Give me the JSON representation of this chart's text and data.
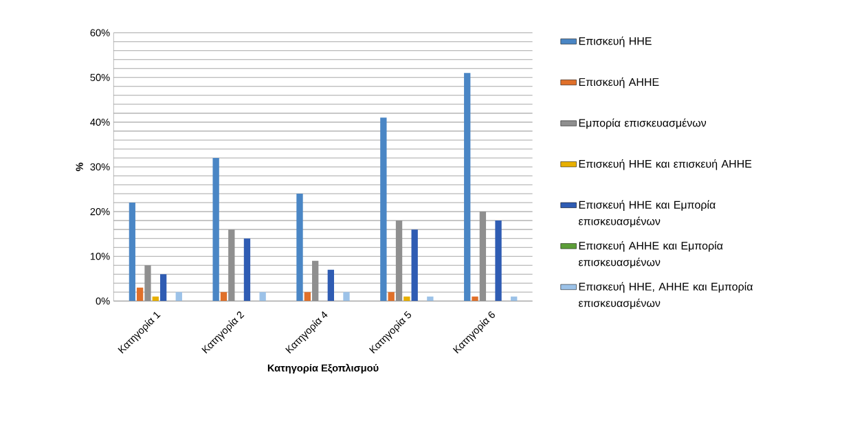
{
  "chart_data": {
    "type": "bar",
    "xlabel": "Κατηγορία Εξοπλισμού",
    "ylabel": "%",
    "categories": [
      "Κατηγορία 1",
      "Κατηγορία 2",
      "Κατηγορία 4",
      "Κατηγορία 5",
      "Κατηγορία 6"
    ],
    "series": [
      {
        "name": "Επισκευή ΗΗΕ",
        "color": "#4a86c5",
        "values": [
          22,
          32,
          24,
          41,
          51
        ]
      },
      {
        "name": "Επισκευή ΑΗΗΕ",
        "color": "#e0702a",
        "values": [
          3,
          2,
          2,
          2,
          1
        ]
      },
      {
        "name": "Εμπορία επισκευασμένων",
        "color": "#8f8f8f",
        "values": [
          8,
          16,
          9,
          18,
          20
        ]
      },
      {
        "name": "Επισκευή ΗΗΕ και επισκευή ΑΗΗΕ",
        "color": "#e8b000",
        "values": [
          1,
          0,
          0,
          1,
          0
        ]
      },
      {
        "name": "Επισκευή ΗΗΕ και Εμπορία επισκευασμένων",
        "color": "#2f5cb3",
        "values": [
          6,
          14,
          7,
          16,
          18
        ]
      },
      {
        "name": "Επισκευή ΑΗΗΕ  και Εμπορία επισκευασμένων",
        "color": "#5c9e38",
        "values": [
          0,
          0,
          0,
          0,
          0
        ]
      },
      {
        "name": "Επισκευή ΗΗΕ, ΑΗΗΕ και Εμπορία επισκευασμένων",
        "color": "#9cc2e8",
        "values": [
          2,
          2,
          2,
          1,
          1
        ]
      }
    ],
    "ylim": [
      0,
      60
    ],
    "yticks": [
      {
        "value": 0,
        "label": "0%"
      },
      {
        "value": 2,
        "label": null
      },
      {
        "value": 4,
        "label": null
      },
      {
        "value": 6,
        "label": null
      },
      {
        "value": 8,
        "label": null
      },
      {
        "value": 10,
        "label": "10%"
      },
      {
        "value": 12,
        "label": null
      },
      {
        "value": 14,
        "label": null
      },
      {
        "value": 16,
        "label": null
      },
      {
        "value": 18,
        "label": null
      },
      {
        "value": 20,
        "label": "20%"
      },
      {
        "value": 22,
        "label": null
      },
      {
        "value": 24,
        "label": null
      },
      {
        "value": 26,
        "label": null
      },
      {
        "value": 28,
        "label": null
      },
      {
        "value": 30,
        "label": "30%"
      },
      {
        "value": 32,
        "label": null
      },
      {
        "value": 34,
        "label": null
      },
      {
        "value": 36,
        "label": null
      },
      {
        "value": 38,
        "label": null
      },
      {
        "value": 40,
        "label": "40%"
      },
      {
        "value": 42,
        "label": null
      },
      {
        "value": 44,
        "label": null
      },
      {
        "value": 46,
        "label": null
      },
      {
        "value": 48,
        "label": null
      },
      {
        "value": 50,
        "label": "50%"
      },
      {
        "value": 52,
        "label": null
      },
      {
        "value": 54,
        "label": null
      },
      {
        "value": 56,
        "label": null
      },
      {
        "value": 58,
        "label": null
      },
      {
        "value": 60,
        "label": "60%"
      }
    ],
    "grid": "y",
    "legend": "right"
  }
}
